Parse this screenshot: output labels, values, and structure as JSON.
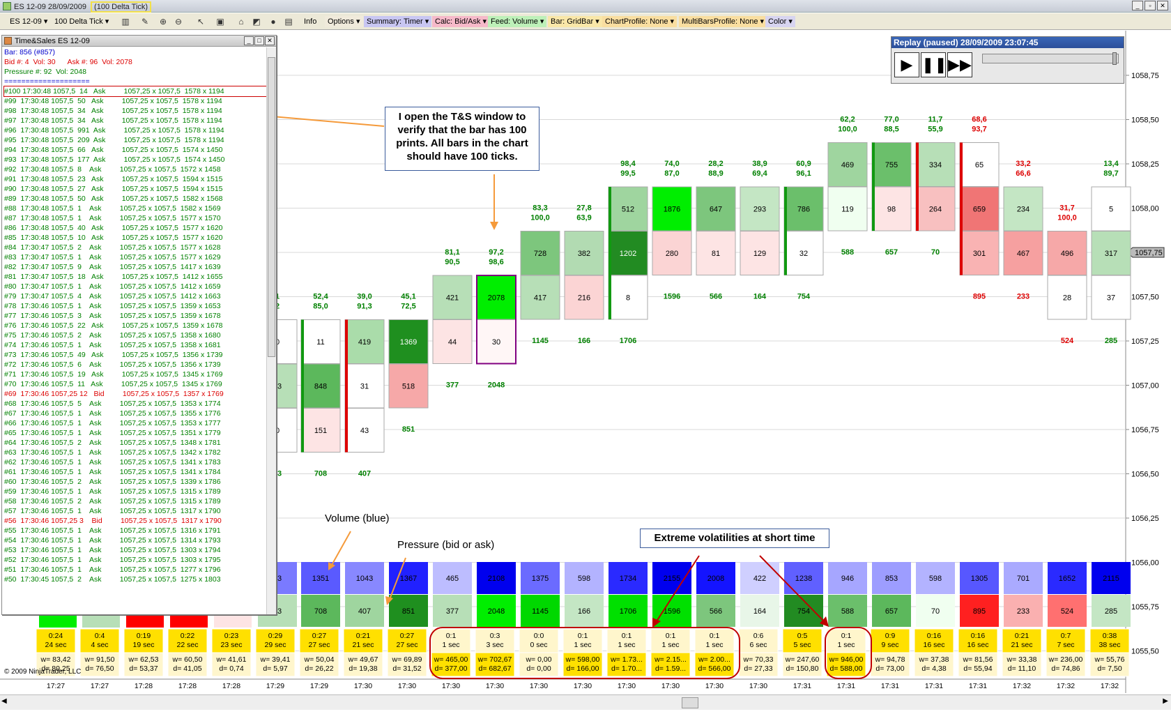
{
  "window": {
    "title": "ES 12-09  28/09/2009",
    "title_highlight": "(100 Delta Tick)"
  },
  "toolbar": {
    "instrument": "ES 12-09",
    "period": "100 Delta Tick",
    "items": [
      {
        "label": "Info"
      },
      {
        "label": "Options"
      },
      {
        "label": "Summary: Timer"
      },
      {
        "label": "Calc: Bid/Ask"
      },
      {
        "label": "Feed: Volume"
      },
      {
        "label": "Bar: GridBar"
      },
      {
        "label": "ChartProfile: None"
      },
      {
        "label": "MultiBarsProfile: None"
      },
      {
        "label": "Color"
      }
    ]
  },
  "time_sales": {
    "title": "Time&Sales ES 12-09",
    "header_bar": "Bar: 856 (#857)",
    "header_bid": "Bid #: 4  Vol: 30      Ask #: 96  Vol: 2078",
    "header_pressure": "Pressure #: 92  Vol: 2048",
    "separator": "===================="
  },
  "replay": {
    "title": "Replay (paused) 28/09/2009 23:07:45"
  },
  "callouts": {
    "ts_note": "I open the T&S window to verify that the bar has 100 prints. All bars in the chart should have 100 ticks.",
    "volume": "Volume (blue)",
    "pressure": "Pressure (bid or ask)",
    "volatility": "Extreme volatilities at short time"
  },
  "price_axis": {
    "labels": [
      "1058,75",
      "1058,50",
      "1058,25",
      "1058,00",
      "1057,75",
      "1057,50",
      "1057,25",
      "1057,00",
      "1056,75",
      "1056,50",
      "1056,25",
      "1056,00",
      "1055,75",
      "1055,50"
    ],
    "current": "1057,75"
  },
  "copyright": "© 2009 NinjaTrader, LLC",
  "colors": {
    "ask_text": "#008000",
    "bid_text": "#dd0000",
    "volume_high": "#1a1aff",
    "pressure_high": "#00e000",
    "timer_yellow": "#ffe000"
  }
}
